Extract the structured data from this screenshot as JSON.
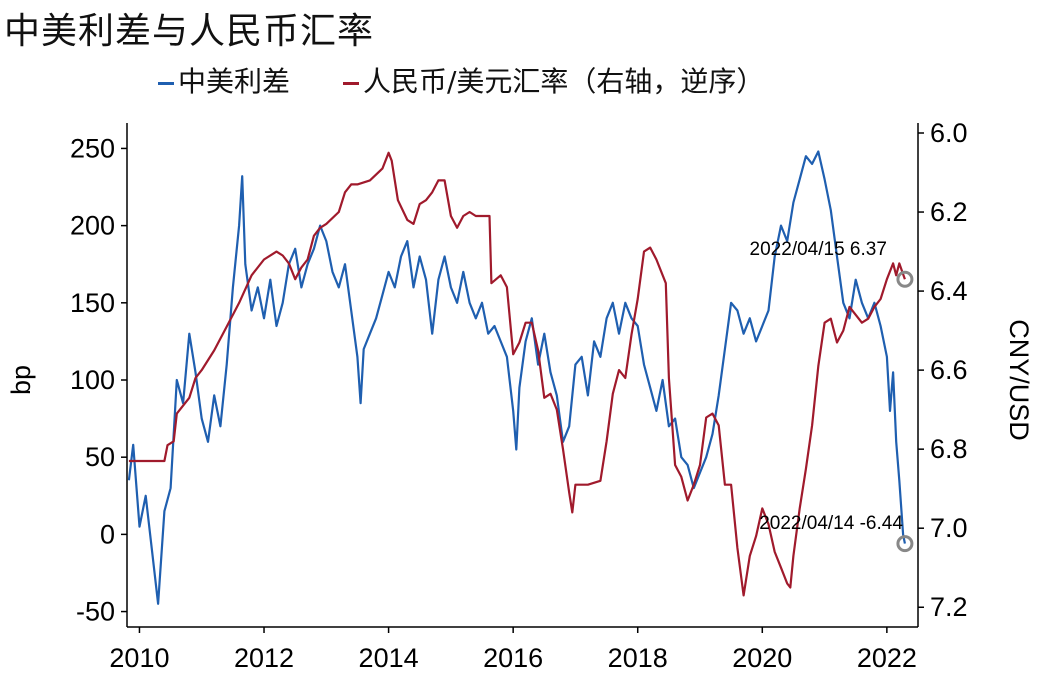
{
  "title": "中美利差与人民币汇率",
  "chart_data": {
    "type": "line",
    "x_range": [
      2009.8,
      2022.5
    ],
    "x_ticks": [
      2010,
      2012,
      2014,
      2016,
      2018,
      2020,
      2022
    ],
    "left_axis": {
      "label": "bp",
      "range": [
        -60,
        260
      ],
      "ticks": [
        -50,
        0,
        50,
        100,
        150,
        200,
        250
      ]
    },
    "right_axis": {
      "label": "CNY/USD",
      "range": [
        6.0,
        7.25
      ],
      "ticks": [
        "6.0",
        "6.2",
        "6.4",
        "6.6",
        "6.8",
        "7.0",
        "7.2"
      ],
      "inverted": true
    },
    "series": [
      {
        "name": "中美利差",
        "color": "#1f5fb0",
        "axis": "left",
        "points": [
          [
            2009.83,
            35
          ],
          [
            2009.9,
            58
          ],
          [
            2010.0,
            5
          ],
          [
            2010.1,
            25
          ],
          [
            2010.2,
            -10
          ],
          [
            2010.3,
            -45
          ],
          [
            2010.4,
            15
          ],
          [
            2010.5,
            30
          ],
          [
            2010.6,
            100
          ],
          [
            2010.7,
            85
          ],
          [
            2010.8,
            130
          ],
          [
            2010.9,
            105
          ],
          [
            2011.0,
            75
          ],
          [
            2011.1,
            60
          ],
          [
            2011.2,
            90
          ],
          [
            2011.3,
            70
          ],
          [
            2011.4,
            110
          ],
          [
            2011.5,
            160
          ],
          [
            2011.6,
            200
          ],
          [
            2011.65,
            232
          ],
          [
            2011.7,
            175
          ],
          [
            2011.8,
            145
          ],
          [
            2011.9,
            160
          ],
          [
            2012.0,
            140
          ],
          [
            2012.1,
            165
          ],
          [
            2012.2,
            135
          ],
          [
            2012.3,
            150
          ],
          [
            2012.4,
            175
          ],
          [
            2012.5,
            185
          ],
          [
            2012.6,
            160
          ],
          [
            2012.7,
            175
          ],
          [
            2012.8,
            185
          ],
          [
            2012.9,
            200
          ],
          [
            2013.0,
            190
          ],
          [
            2013.1,
            170
          ],
          [
            2013.2,
            160
          ],
          [
            2013.3,
            175
          ],
          [
            2013.4,
            145
          ],
          [
            2013.5,
            115
          ],
          [
            2013.55,
            85
          ],
          [
            2013.6,
            120
          ],
          [
            2013.7,
            130
          ],
          [
            2013.8,
            140
          ],
          [
            2013.9,
            155
          ],
          [
            2014.0,
            170
          ],
          [
            2014.1,
            160
          ],
          [
            2014.2,
            180
          ],
          [
            2014.3,
            190
          ],
          [
            2014.4,
            160
          ],
          [
            2014.5,
            180
          ],
          [
            2014.6,
            165
          ],
          [
            2014.7,
            130
          ],
          [
            2014.8,
            165
          ],
          [
            2014.9,
            180
          ],
          [
            2015.0,
            160
          ],
          [
            2015.1,
            150
          ],
          [
            2015.2,
            170
          ],
          [
            2015.3,
            150
          ],
          [
            2015.4,
            140
          ],
          [
            2015.5,
            150
          ],
          [
            2015.6,
            130
          ],
          [
            2015.7,
            135
          ],
          [
            2015.8,
            125
          ],
          [
            2015.9,
            115
          ],
          [
            2016.0,
            80
          ],
          [
            2016.05,
            55
          ],
          [
            2016.1,
            95
          ],
          [
            2016.2,
            125
          ],
          [
            2016.3,
            140
          ],
          [
            2016.4,
            110
          ],
          [
            2016.5,
            130
          ],
          [
            2016.6,
            105
          ],
          [
            2016.7,
            90
          ],
          [
            2016.8,
            60
          ],
          [
            2016.9,
            70
          ],
          [
            2017.0,
            110
          ],
          [
            2017.1,
            115
          ],
          [
            2017.2,
            90
          ],
          [
            2017.3,
            125
          ],
          [
            2017.4,
            115
          ],
          [
            2017.5,
            140
          ],
          [
            2017.6,
            150
          ],
          [
            2017.7,
            130
          ],
          [
            2017.8,
            150
          ],
          [
            2017.9,
            140
          ],
          [
            2018.0,
            135
          ],
          [
            2018.1,
            110
          ],
          [
            2018.2,
            95
          ],
          [
            2018.3,
            80
          ],
          [
            2018.4,
            100
          ],
          [
            2018.5,
            70
          ],
          [
            2018.6,
            75
          ],
          [
            2018.7,
            50
          ],
          [
            2018.8,
            45
          ],
          [
            2018.9,
            30
          ],
          [
            2019.0,
            40
          ],
          [
            2019.1,
            50
          ],
          [
            2019.2,
            65
          ],
          [
            2019.3,
            90
          ],
          [
            2019.4,
            120
          ],
          [
            2019.5,
            150
          ],
          [
            2019.6,
            145
          ],
          [
            2019.7,
            130
          ],
          [
            2019.8,
            140
          ],
          [
            2019.9,
            125
          ],
          [
            2020.0,
            135
          ],
          [
            2020.1,
            145
          ],
          [
            2020.2,
            180
          ],
          [
            2020.3,
            200
          ],
          [
            2020.4,
            190
          ],
          [
            2020.5,
            215
          ],
          [
            2020.6,
            230
          ],
          [
            2020.7,
            245
          ],
          [
            2020.8,
            240
          ],
          [
            2020.9,
            248
          ],
          [
            2021.0,
            230
          ],
          [
            2021.1,
            210
          ],
          [
            2021.2,
            180
          ],
          [
            2021.3,
            150
          ],
          [
            2021.4,
            140
          ],
          [
            2021.5,
            165
          ],
          [
            2021.6,
            150
          ],
          [
            2021.7,
            140
          ],
          [
            2021.8,
            150
          ],
          [
            2021.9,
            135
          ],
          [
            2022.0,
            115
          ],
          [
            2022.05,
            80
          ],
          [
            2022.1,
            105
          ],
          [
            2022.15,
            60
          ],
          [
            2022.2,
            35
          ],
          [
            2022.26,
            0
          ],
          [
            2022.29,
            -6
          ]
        ]
      },
      {
        "name": "人民币/美元汇率（右轴，逆序）",
        "color": "#a01a2c",
        "axis": "right",
        "points": [
          [
            2009.83,
            6.83
          ],
          [
            2010.0,
            6.83
          ],
          [
            2010.2,
            6.83
          ],
          [
            2010.4,
            6.83
          ],
          [
            2010.45,
            6.79
          ],
          [
            2010.55,
            6.78
          ],
          [
            2010.6,
            6.71
          ],
          [
            2010.8,
            6.67
          ],
          [
            2010.9,
            6.62
          ],
          [
            2011.0,
            6.6
          ],
          [
            2011.2,
            6.55
          ],
          [
            2011.4,
            6.49
          ],
          [
            2011.6,
            6.43
          ],
          [
            2011.8,
            6.36
          ],
          [
            2012.0,
            6.32
          ],
          [
            2012.2,
            6.3
          ],
          [
            2012.3,
            6.31
          ],
          [
            2012.4,
            6.33
          ],
          [
            2012.5,
            6.37
          ],
          [
            2012.6,
            6.34
          ],
          [
            2012.7,
            6.32
          ],
          [
            2012.8,
            6.26
          ],
          [
            2012.9,
            6.24
          ],
          [
            2013.0,
            6.23
          ],
          [
            2013.2,
            6.2
          ],
          [
            2013.3,
            6.15
          ],
          [
            2013.4,
            6.13
          ],
          [
            2013.5,
            6.13
          ],
          [
            2013.7,
            6.12
          ],
          [
            2013.9,
            6.09
          ],
          [
            2014.0,
            6.05
          ],
          [
            2014.05,
            6.07
          ],
          [
            2014.15,
            6.17
          ],
          [
            2014.3,
            6.22
          ],
          [
            2014.4,
            6.23
          ],
          [
            2014.5,
            6.18
          ],
          [
            2014.6,
            6.17
          ],
          [
            2014.7,
            6.15
          ],
          [
            2014.8,
            6.12
          ],
          [
            2014.9,
            6.12
          ],
          [
            2015.0,
            6.21
          ],
          [
            2015.1,
            6.24
          ],
          [
            2015.2,
            6.21
          ],
          [
            2015.3,
            6.2
          ],
          [
            2015.4,
            6.21
          ],
          [
            2015.5,
            6.21
          ],
          [
            2015.62,
            6.21
          ],
          [
            2015.65,
            6.38
          ],
          [
            2015.8,
            6.36
          ],
          [
            2015.9,
            6.39
          ],
          [
            2016.0,
            6.56
          ],
          [
            2016.1,
            6.53
          ],
          [
            2016.2,
            6.48
          ],
          [
            2016.3,
            6.48
          ],
          [
            2016.4,
            6.55
          ],
          [
            2016.5,
            6.67
          ],
          [
            2016.6,
            6.66
          ],
          [
            2016.7,
            6.7
          ],
          [
            2016.8,
            6.8
          ],
          [
            2016.9,
            6.91
          ],
          [
            2016.95,
            6.96
          ],
          [
            2017.0,
            6.89
          ],
          [
            2017.2,
            6.89
          ],
          [
            2017.4,
            6.88
          ],
          [
            2017.5,
            6.78
          ],
          [
            2017.6,
            6.66
          ],
          [
            2017.7,
            6.6
          ],
          [
            2017.8,
            6.62
          ],
          [
            2017.9,
            6.51
          ],
          [
            2018.0,
            6.42
          ],
          [
            2018.1,
            6.3
          ],
          [
            2018.2,
            6.29
          ],
          [
            2018.3,
            6.32
          ],
          [
            2018.45,
            6.38
          ],
          [
            2018.5,
            6.62
          ],
          [
            2018.6,
            6.84
          ],
          [
            2018.7,
            6.87
          ],
          [
            2018.8,
            6.93
          ],
          [
            2018.9,
            6.89
          ],
          [
            2019.0,
            6.84
          ],
          [
            2019.1,
            6.72
          ],
          [
            2019.2,
            6.71
          ],
          [
            2019.3,
            6.74
          ],
          [
            2019.4,
            6.89
          ],
          [
            2019.5,
            6.89
          ],
          [
            2019.6,
            7.05
          ],
          [
            2019.7,
            7.17
          ],
          [
            2019.8,
            7.07
          ],
          [
            2019.9,
            7.02
          ],
          [
            2020.0,
            6.95
          ],
          [
            2020.1,
            6.99
          ],
          [
            2020.2,
            7.06
          ],
          [
            2020.3,
            7.1
          ],
          [
            2020.4,
            7.14
          ],
          [
            2020.45,
            7.15
          ],
          [
            2020.5,
            7.07
          ],
          [
            2020.6,
            6.95
          ],
          [
            2020.7,
            6.85
          ],
          [
            2020.8,
            6.74
          ],
          [
            2020.9,
            6.59
          ],
          [
            2021.0,
            6.48
          ],
          [
            2021.1,
            6.47
          ],
          [
            2021.2,
            6.53
          ],
          [
            2021.3,
            6.5
          ],
          [
            2021.4,
            6.44
          ],
          [
            2021.5,
            6.46
          ],
          [
            2021.6,
            6.48
          ],
          [
            2021.7,
            6.47
          ],
          [
            2021.8,
            6.44
          ],
          [
            2021.9,
            6.42
          ],
          [
            2022.0,
            6.37
          ],
          [
            2022.1,
            6.33
          ],
          [
            2022.15,
            6.36
          ],
          [
            2022.2,
            6.33
          ],
          [
            2022.29,
            6.37
          ]
        ]
      }
    ],
    "annotations": [
      {
        "text": "2022/04/15 6.37",
        "series": 1,
        "x": 2022.29,
        "y": 6.37
      },
      {
        "text": "2022/04/14 -6.44",
        "series": 0,
        "x": 2022.29,
        "y": -6.44
      }
    ],
    "grid": false,
    "legend_position": "top-center"
  }
}
